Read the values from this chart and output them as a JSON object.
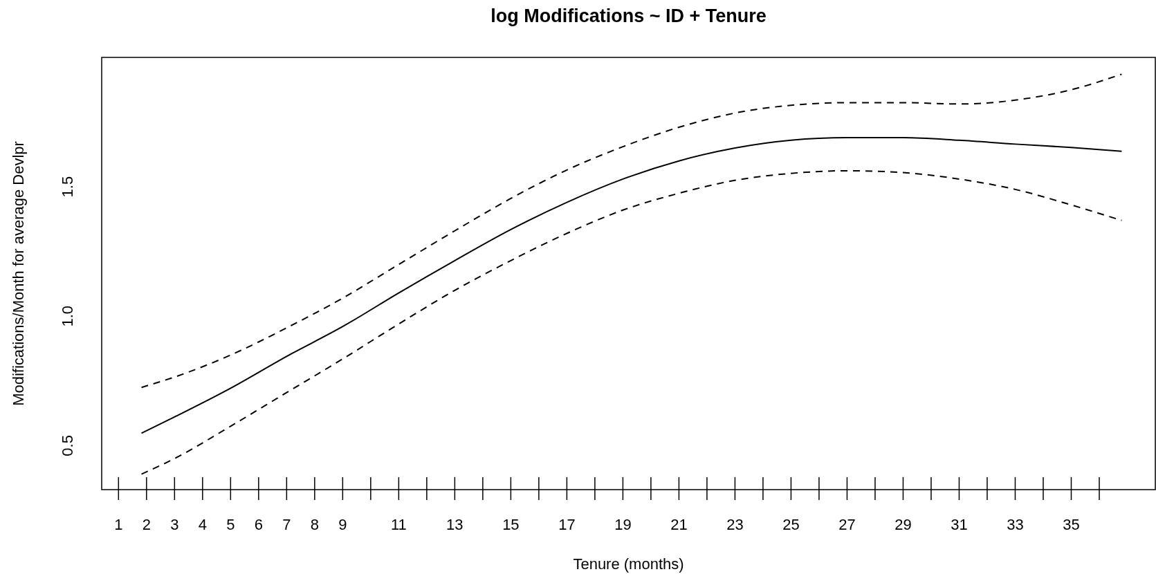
{
  "chart_data": {
    "type": "line",
    "title": "log Modifications ~ ID + Tenure",
    "xlabel": "Tenure (months)",
    "ylabel": "Modifications/Month for average Devlpr",
    "xlim": [
      0.4,
      38
    ],
    "ylim": [
      0.33,
      2.0
    ],
    "xticks": [
      1,
      2,
      3,
      4,
      5,
      6,
      7,
      8,
      9,
      {
        "value": 10,
        "label": null
      },
      11,
      {
        "value": 12,
        "label": null
      },
      13,
      {
        "value": 14,
        "label": null
      },
      15,
      {
        "value": 16,
        "label": null
      },
      17,
      {
        "value": 18,
        "label": null
      },
      19,
      {
        "value": 20,
        "label": null
      },
      21,
      {
        "value": 22,
        "label": null
      },
      23,
      {
        "value": 24,
        "label": null
      },
      25,
      {
        "value": 26,
        "label": null
      },
      27,
      {
        "value": 28,
        "label": null
      },
      29,
      {
        "value": 30,
        "label": null
      },
      31,
      {
        "value": 32,
        "label": null
      },
      33,
      {
        "value": 34,
        "label": null
      },
      35,
      {
        "value": 36,
        "label": null
      }
    ],
    "yticks": [
      0.5,
      {
        "value": 1,
        "label": "1.0"
      },
      1.5
    ],
    "x": [
      1.82,
      3,
      5,
      7,
      9,
      11,
      13,
      15,
      17,
      19,
      21,
      23,
      25,
      27,
      29,
      31,
      33,
      35,
      36.8
    ],
    "series": [
      {
        "color": "#000000",
        "line_style": "solid",
        "values": [
          0.548,
          0.611,
          0.722,
          0.845,
          0.96,
          1.09,
          1.215,
          1.335,
          1.44,
          1.53,
          1.6,
          1.65,
          1.68,
          1.69,
          1.69,
          1.68,
          1.665,
          1.652,
          1.637
        ]
      },
      {
        "color": "#000000",
        "line_style": "dashed",
        "values": [
          0.725,
          0.765,
          0.85,
          0.955,
          1.07,
          1.2,
          1.33,
          1.455,
          1.565,
          1.655,
          1.73,
          1.785,
          1.815,
          1.825,
          1.825,
          1.82,
          1.835,
          1.875,
          1.935
        ]
      },
      {
        "color": "#000000",
        "line_style": "dashed",
        "values": [
          0.39,
          0.45,
          0.575,
          0.705,
          0.835,
          0.97,
          1.1,
          1.215,
          1.32,
          1.41,
          1.475,
          1.525,
          1.552,
          1.562,
          1.555,
          1.53,
          1.49,
          1.43,
          1.37
        ]
      }
    ]
  }
}
